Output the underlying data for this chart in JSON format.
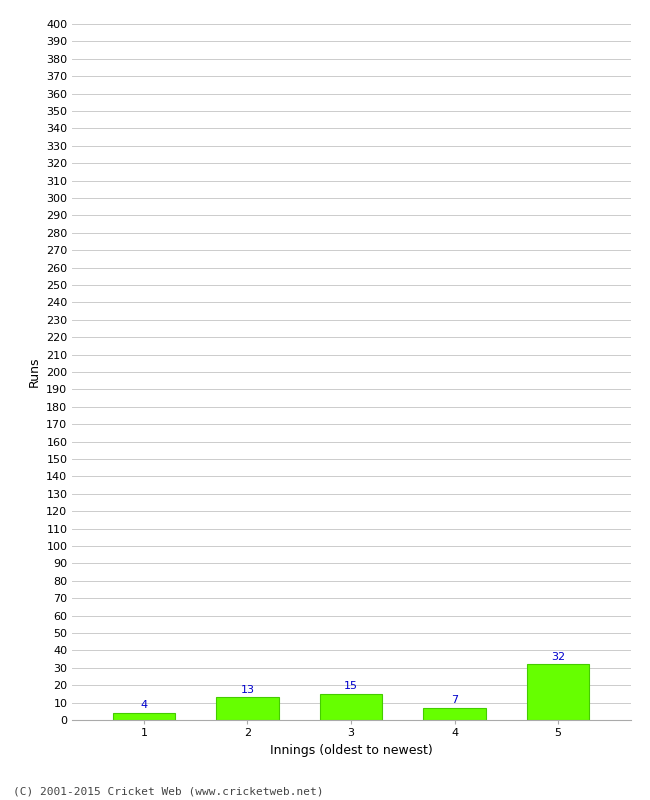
{
  "categories": [
    "1",
    "2",
    "3",
    "4",
    "5"
  ],
  "values": [
    4,
    13,
    15,
    7,
    32
  ],
  "bar_color": "#66ff00",
  "bar_edge_color": "#44cc00",
  "label_color": "#0000cc",
  "xlabel": "Innings (oldest to newest)",
  "ylabel": "Runs",
  "ylim": [
    0,
    400
  ],
  "ytick_step": 10,
  "background_color": "#ffffff",
  "grid_color": "#cccccc",
  "footer_text": "(C) 2001-2015 Cricket Web (www.cricketweb.net)",
  "label_fontsize": 8,
  "axis_label_fontsize": 9,
  "tick_fontsize": 8,
  "footer_fontsize": 8
}
